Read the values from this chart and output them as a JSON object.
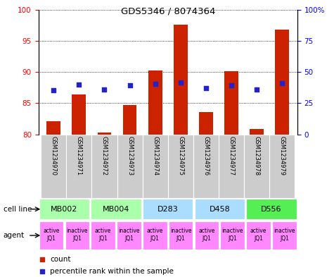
{
  "title": "GDS5346 / 8074364",
  "samples": [
    "GSM1234970",
    "GSM1234971",
    "GSM1234972",
    "GSM1234973",
    "GSM1234974",
    "GSM1234975",
    "GSM1234976",
    "GSM1234977",
    "GSM1234978",
    "GSM1234979"
  ],
  "bar_values": [
    82.1,
    86.4,
    80.3,
    84.7,
    90.2,
    97.6,
    83.6,
    90.1,
    80.9,
    96.8
  ],
  "dot_left_values": [
    87.1,
    88.0,
    87.2,
    87.9,
    88.1,
    88.3,
    87.4,
    87.9,
    87.2,
    88.2
  ],
  "bar_color": "#cc2200",
  "dot_color": "#2222cc",
  "ylim_left": [
    80,
    100
  ],
  "ylim_right": [
    0,
    100
  ],
  "yticks_left": [
    80,
    85,
    90,
    95,
    100
  ],
  "yticks_right": [
    0,
    25,
    50,
    75,
    100
  ],
  "ytick_labels_right": [
    "0",
    "25",
    "50",
    "75",
    "100%"
  ],
  "cell_lines": [
    {
      "label": "MB002",
      "span": [
        0,
        2
      ],
      "color": "#aaffaa"
    },
    {
      "label": "MB004",
      "span": [
        2,
        4
      ],
      "color": "#aaffaa"
    },
    {
      "label": "D283",
      "span": [
        4,
        6
      ],
      "color": "#aaddff"
    },
    {
      "label": "D458",
      "span": [
        6,
        8
      ],
      "color": "#aaddff"
    },
    {
      "label": "D556",
      "span": [
        8,
        10
      ],
      "color": "#55ee55"
    }
  ],
  "agents": [
    {
      "label": "active\nJQ1",
      "idx": 0
    },
    {
      "label": "inactive\nJQ1",
      "idx": 1
    },
    {
      "label": "active\nJQ1",
      "idx": 2
    },
    {
      "label": "inactive\nJQ1",
      "idx": 3
    },
    {
      "label": "active\nJQ1",
      "idx": 4
    },
    {
      "label": "inactive\nJQ1",
      "idx": 5
    },
    {
      "label": "active\nJQ1",
      "idx": 6
    },
    {
      "label": "inactive\nJQ1",
      "idx": 7
    },
    {
      "label": "active\nJQ1",
      "idx": 8
    },
    {
      "label": "inactive\nJQ1",
      "idx": 9
    }
  ],
  "agent_color": "#ff88ff",
  "sample_box_color": "#cccccc",
  "legend_count_label": "count",
  "legend_pct_label": "percentile rank within the sample",
  "cell_line_label": "cell line",
  "agent_label": "agent"
}
